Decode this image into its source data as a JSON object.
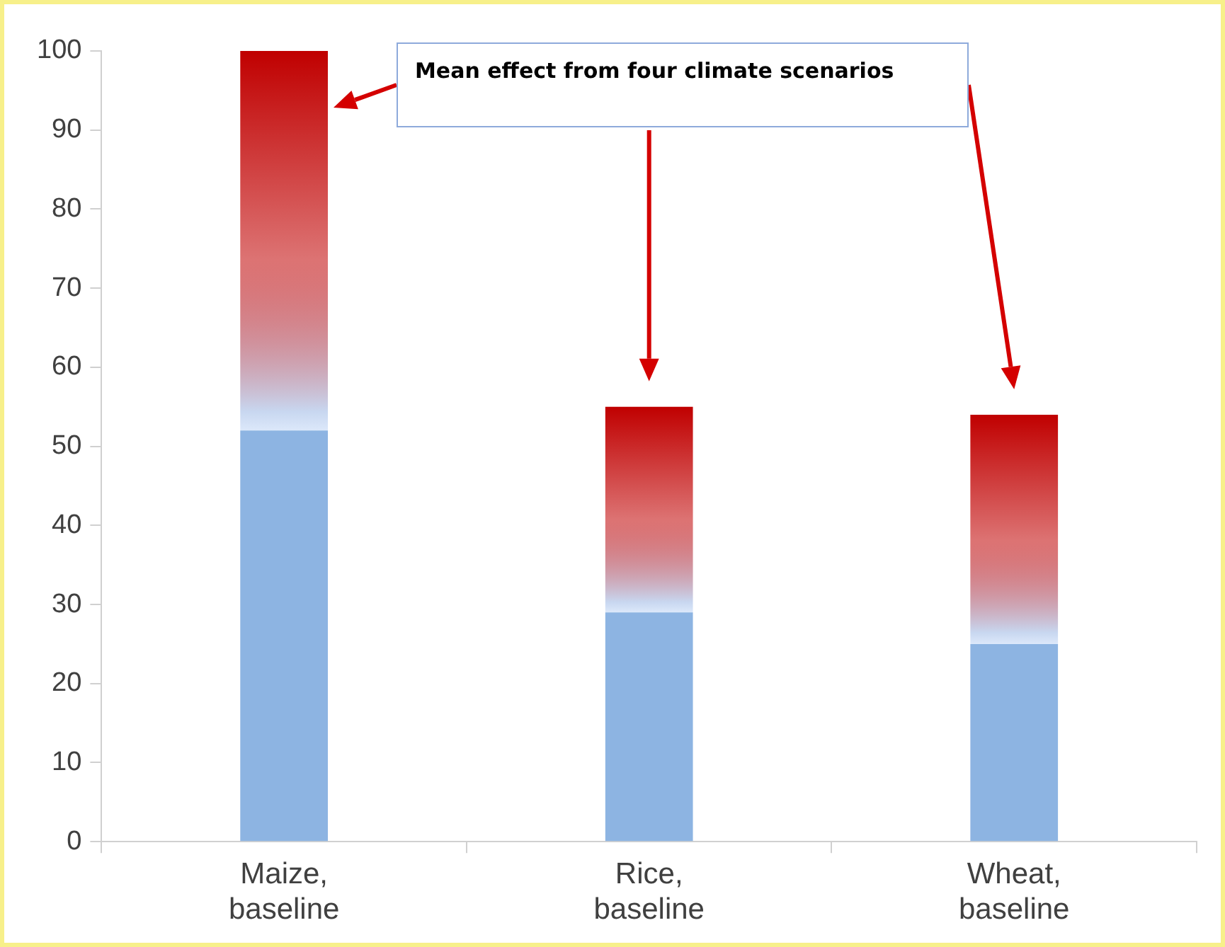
{
  "chart_data": {
    "type": "bar",
    "stacked": true,
    "categories": [
      "Maize, baseline",
      "Rice, baseline",
      "Wheat, baseline"
    ],
    "series": [
      {
        "color": "#8db4e2",
        "values": [
          52,
          29,
          25
        ]
      },
      {
        "color": "#c00000",
        "values": [
          48,
          26,
          29
        ]
      }
    ],
    "ylim": [
      0,
      100
    ],
    "yticks": [
      0,
      10,
      20,
      30,
      40,
      50,
      60,
      70,
      80,
      90,
      100
    ],
    "grid": false,
    "legend": false,
    "annotations": [
      "Mean effect from four climate scenarios"
    ]
  }
}
